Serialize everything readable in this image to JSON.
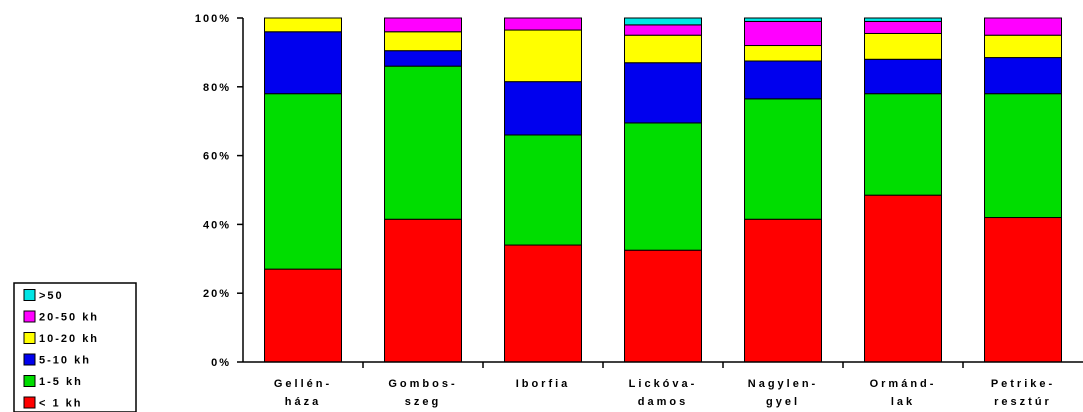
{
  "chart_data": {
    "type": "bar",
    "stacked": true,
    "percent": true,
    "categories": [
      [
        "Gellén-",
        "háza"
      ],
      [
        "Gombos-",
        "szeg"
      ],
      [
        "Iborfia"
      ],
      [
        "Lickóva-",
        "damos"
      ],
      [
        "Nagylen-",
        "gyel"
      ],
      [
        "Ormánd-",
        "lak"
      ],
      [
        "Petrike-",
        "resztúr"
      ]
    ],
    "series": [
      {
        "name": "< 1 kh",
        "color": "#ff0000",
        "values": [
          27,
          41.5,
          34,
          32.5,
          41.5,
          48.5,
          42
        ]
      },
      {
        "name": "1-5 kh",
        "color": "#00dd00",
        "values": [
          51,
          44.5,
          32,
          37,
          35,
          29.5,
          36
        ]
      },
      {
        "name": "5-10 kh",
        "color": "#0000ee",
        "values": [
          18,
          4.5,
          15.5,
          17.5,
          11,
          10,
          10.5
        ]
      },
      {
        "name": "10-20 kh",
        "color": "#ffff00",
        "values": [
          4,
          5.5,
          15,
          8,
          4.5,
          7.5,
          6.5
        ]
      },
      {
        "name": "20-50 kh",
        "color": "#ff00ff",
        "values": [
          0,
          4,
          3.5,
          3,
          7,
          3.5,
          5
        ]
      },
      {
        "name": ">50",
        "color": "#00e5e5",
        "values": [
          0,
          0,
          0,
          2,
          1,
          1,
          0
        ]
      }
    ],
    "yticks": [
      "0%",
      "20%",
      "40%",
      "60%",
      "80%",
      "100%"
    ],
    "ylim": [
      0,
      100
    ],
    "grid": false,
    "legend_position": "bottom-left"
  }
}
